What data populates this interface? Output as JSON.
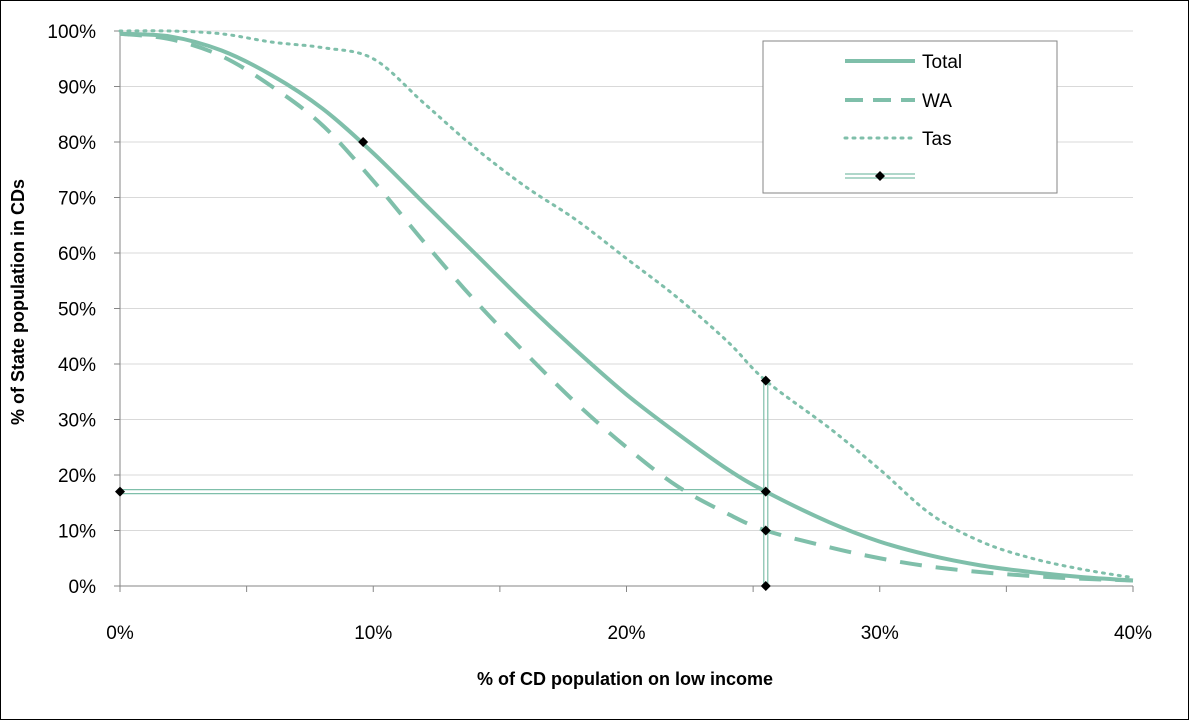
{
  "chart_data": {
    "type": "line",
    "xlabel": "% of CD population on low income",
    "ylabel": "% of State population  in CDs",
    "xlim": [
      0,
      40
    ],
    "ylim": [
      0,
      100
    ],
    "x_ticks": [
      "0%",
      "10%",
      "20%",
      "30%",
      "40%"
    ],
    "y_ticks": [
      "0%",
      "10%",
      "20%",
      "30%",
      "40%",
      "50%",
      "60%",
      "70%",
      "80%",
      "90%",
      "100%"
    ],
    "grid": "horizontal",
    "legend_position": "top-right",
    "colors": {
      "series": "#7fbfaa",
      "marker": "#000000",
      "gridline": "#d9d9d9",
      "axis": "#868686"
    },
    "series": [
      {
        "name": "Total",
        "style": "solid",
        "x": [
          0,
          2,
          4,
          6,
          8,
          10,
          12,
          14,
          16,
          18,
          20,
          22,
          24,
          25.5,
          28,
          30,
          32,
          34,
          36,
          38,
          40
        ],
        "y": [
          99.5,
          99,
          96.5,
          92,
          86,
          78,
          69,
          60,
          51,
          42.5,
          34.5,
          27.5,
          21,
          17,
          11.5,
          8,
          5.5,
          3.7,
          2.5,
          1.6,
          1
        ]
      },
      {
        "name": "WA",
        "style": "dashed",
        "x": [
          0,
          2,
          4,
          6,
          8,
          10,
          12,
          14,
          16,
          18,
          20,
          22,
          24,
          25.5,
          28,
          30,
          32,
          34,
          36,
          38,
          40
        ],
        "y": [
          99.5,
          98.5,
          95.5,
          90,
          83,
          73,
          62,
          51.5,
          42,
          33,
          25,
          18,
          13,
          10,
          7,
          5,
          3.5,
          2.5,
          1.8,
          1.3,
          1
        ]
      },
      {
        "name": "Tas",
        "style": "dotted",
        "x": [
          0,
          2,
          4,
          6,
          8,
          10,
          12,
          14,
          16,
          18,
          20,
          22,
          24,
          25.5,
          28,
          30,
          32,
          34,
          36,
          38,
          40
        ],
        "y": [
          100,
          100,
          99.5,
          98,
          97,
          95,
          87,
          79,
          72,
          66,
          59,
          52,
          44,
          37,
          28.5,
          21,
          13,
          8,
          5,
          3,
          1.5
        ]
      },
      {
        "name": "",
        "style": "marker-lines",
        "x": [
          0,
          25.5,
          25.5,
          25.5,
          25.5,
          9.6
        ],
        "y": [
          17,
          17,
          37,
          10,
          0,
          80
        ]
      }
    ]
  }
}
